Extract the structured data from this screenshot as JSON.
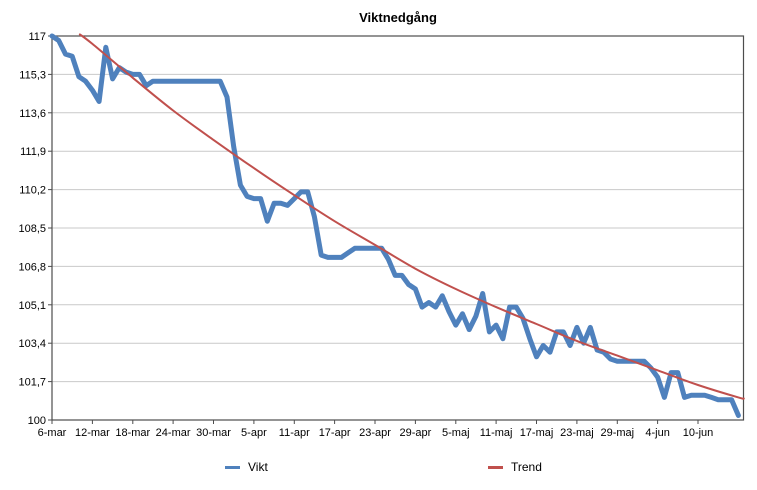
{
  "chart_data": {
    "type": "line",
    "title": "Viktnedgång",
    "xlabel": "",
    "ylabel": "",
    "ylim": [
      100,
      117
    ],
    "y_tick_step": 1.7,
    "y_tick_labels": [
      "117",
      "115,3",
      "113,6",
      "111,9",
      "110,2",
      "108,5",
      "106,8",
      "105,1",
      "103,4",
      "101,7",
      "100"
    ],
    "x_tick_labels": [
      "6-mar",
      "12-mar",
      "18-mar",
      "24-mar",
      "30-mar",
      "5-apr",
      "11-apr",
      "17-apr",
      "23-apr",
      "29-apr",
      "5-maj",
      "11-maj",
      "17-maj",
      "23-maj",
      "29-maj",
      "4-jun",
      "10-jun"
    ],
    "x_label_every": 6,
    "grid": "horizontal",
    "legend_position": "bottom",
    "colors": {
      "gridline": "#c9c9c9",
      "axis": "#4d4d4d",
      "text": "#000000",
      "background": "#ffffff"
    },
    "series": [
      {
        "name": "Vikt",
        "color": "#4F81BD",
        "line_width": 5,
        "values": [
          117.0,
          116.8,
          116.2,
          116.1,
          115.2,
          115.0,
          114.6,
          114.1,
          116.5,
          115.1,
          115.6,
          115.4,
          115.3,
          115.3,
          114.8,
          115.0,
          115.0,
          115.0,
          115.0,
          115.0,
          115.0,
          115.0,
          115.0,
          115.0,
          115.0,
          115.0,
          114.3,
          112.1,
          110.4,
          109.9,
          109.8,
          109.8,
          108.8,
          109.6,
          109.6,
          109.5,
          109.8,
          110.1,
          110.1,
          109.0,
          107.3,
          107.2,
          107.2,
          107.2,
          107.4,
          107.6,
          107.6,
          107.6,
          107.6,
          107.6,
          107.1,
          106.4,
          106.4,
          106.0,
          105.8,
          105.0,
          105.2,
          105.0,
          105.5,
          104.8,
          104.2,
          104.7,
          104.0,
          104.6,
          105.6,
          103.9,
          104.2,
          103.6,
          105.0,
          105.0,
          104.5,
          103.6,
          102.8,
          103.3,
          103.0,
          103.9,
          103.9,
          103.3,
          104.1,
          103.4,
          104.1,
          103.1,
          103.0,
          102.7,
          102.6,
          102.6,
          102.6,
          102.6,
          102.6,
          102.3,
          101.9,
          101.0,
          102.1,
          102.1,
          101.0,
          101.1,
          101.1,
          101.1,
          101.0,
          100.9,
          100.9,
          100.9,
          100.2
        ]
      },
      {
        "name": "Trend",
        "color": "#C0504D",
        "line_width": 2,
        "points": [
          [
            4.15,
            117.07
          ],
          [
            6,
            116.65
          ],
          [
            12,
            115.15
          ],
          [
            18,
            113.7
          ],
          [
            24,
            112.4
          ],
          [
            30,
            111.15
          ],
          [
            36,
            109.95
          ],
          [
            42,
            108.8
          ],
          [
            48,
            107.75
          ],
          [
            54,
            106.7
          ],
          [
            60,
            105.8
          ],
          [
            66,
            105.0
          ],
          [
            72,
            104.25
          ],
          [
            78,
            103.5
          ],
          [
            84,
            102.85
          ],
          [
            90,
            102.2
          ],
          [
            96,
            101.55
          ],
          [
            102,
            101.0
          ],
          [
            102.8,
            100.95
          ]
        ]
      }
    ]
  }
}
